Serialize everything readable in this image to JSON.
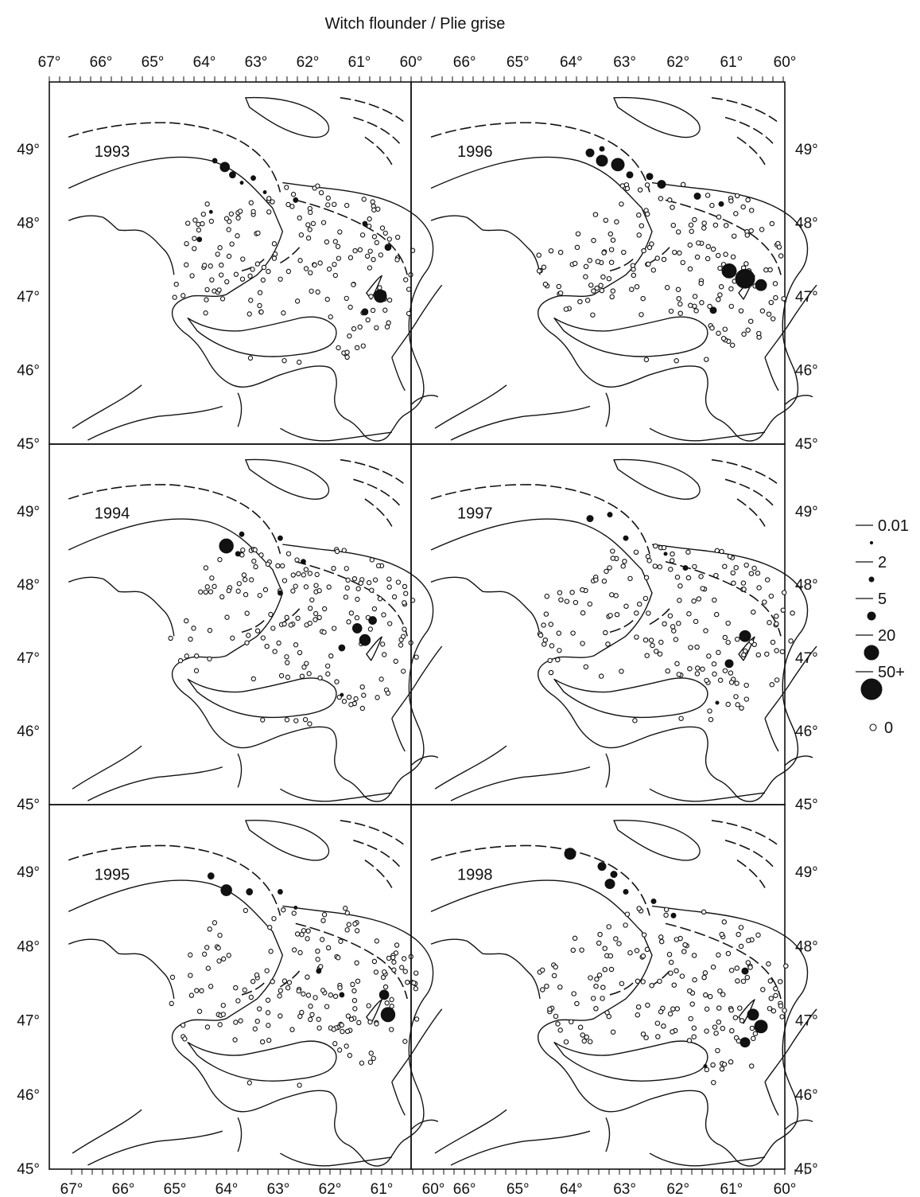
{
  "figure": {
    "title": "Witch flounder / Plie grise",
    "longitude_labels": [
      "67°",
      "66°",
      "65°",
      "64°",
      "63°",
      "62°",
      "61°",
      "60°"
    ],
    "latitude_labels": [
      "49°",
      "48°",
      "47°",
      "46°",
      "45°"
    ],
    "panels": [
      {
        "id": "1993",
        "label": "1993",
        "col": 0,
        "row": 0
      },
      {
        "id": "1994",
        "label": "1994",
        "col": 0,
        "row": 1
      },
      {
        "id": "1995",
        "label": "1995",
        "col": 0,
        "row": 2
      },
      {
        "id": "1996",
        "label": "1996",
        "col": 1,
        "row": 0
      },
      {
        "id": "1997",
        "label": "1997",
        "col": 1,
        "row": 1
      },
      {
        "id": "1998",
        "label": "1998",
        "col": 1,
        "row": 2
      }
    ],
    "legend": {
      "entries": [
        {
          "label": "0.01",
          "marker": "tiny-filled"
        },
        {
          "label": "2",
          "marker": "small-filled"
        },
        {
          "label": "5",
          "marker": "medium-filled"
        },
        {
          "label": "20",
          "marker": "large-filled"
        },
        {
          "label": "50+",
          "marker": "xlarge-filled"
        },
        {
          "label": "0",
          "marker": "open-circle"
        }
      ]
    },
    "colors": {
      "ink": "#111111",
      "background": "#ffffff"
    }
  }
}
